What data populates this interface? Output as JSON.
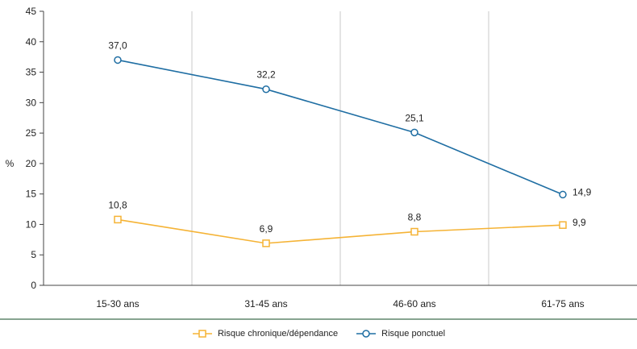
{
  "chart_data": {
    "type": "line",
    "title": "",
    "xlabel": "",
    "ylabel": "%",
    "ylim": [
      0,
      45
    ],
    "yticks": [
      0,
      5,
      10,
      15,
      20,
      25,
      30,
      35,
      40,
      45
    ],
    "categories": [
      "15-30 ans",
      "31-45 ans",
      "46-60 ans",
      "61-75 ans"
    ],
    "series": [
      {
        "name": "Risque chronique/dépendance",
        "values": [
          10.8,
          6.9,
          8.8,
          9.9
        ],
        "labels": [
          "10,8",
          "6,9",
          "8,8",
          "9,9"
        ],
        "color": "#f5b335",
        "marker": "square"
      },
      {
        "name": "Risque ponctuel",
        "values": [
          37.0,
          32.2,
          25.1,
          14.9
        ],
        "labels": [
          "37,0",
          "32,2",
          "25,1",
          "14,9"
        ],
        "color": "#1f6ea3",
        "marker": "circle"
      }
    ],
    "grid": "vertical",
    "legend_position": "bottom-center",
    "separator_color": "#3d6e4e"
  }
}
